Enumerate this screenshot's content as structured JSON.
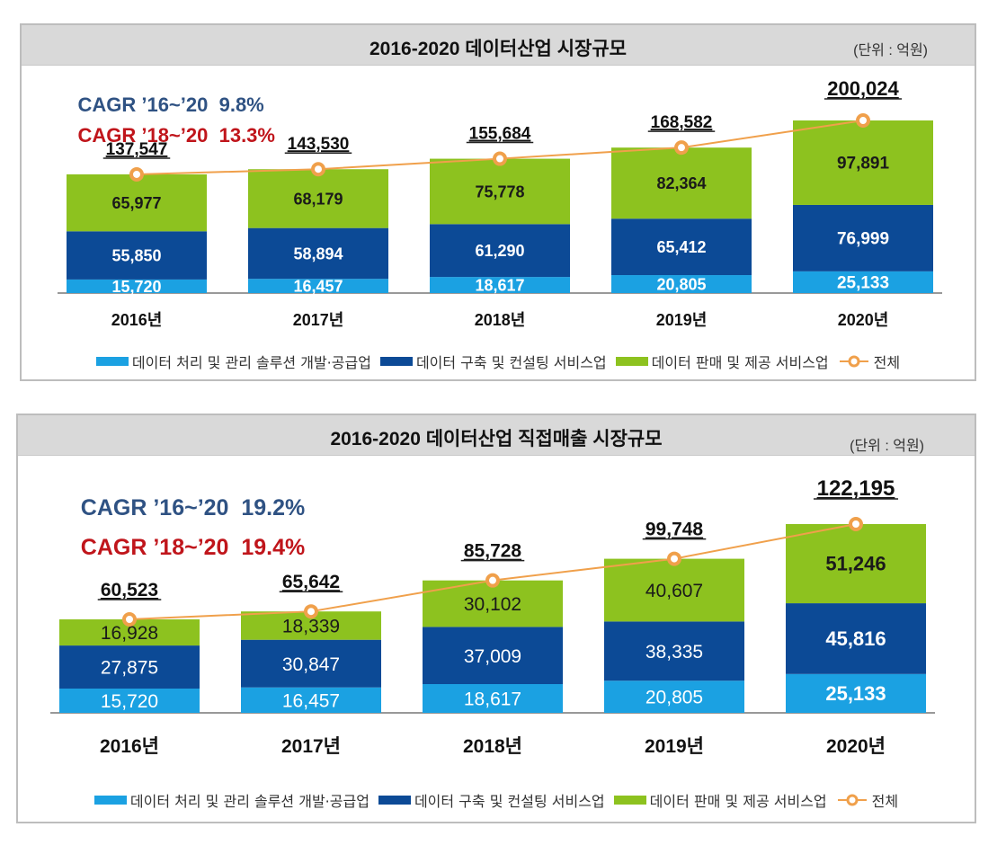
{
  "colors": {
    "series1": "#1ba1e2",
    "series2": "#0c4a96",
    "series3": "#8dc21f",
    "total_line": "#f0a04b",
    "cagr_long": "#2f5283",
    "cagr_short": "#c0151b"
  },
  "chart_data": [
    {
      "type": "bar",
      "stacked": true,
      "title": "2016-2020 데이터산업 시장규모",
      "unit_label": "(단위 : 억원)",
      "cagr": [
        {
          "label": "CAGR ’16~’20",
          "value": "9.8%"
        },
        {
          "label": "CAGR ’18~’20",
          "value": "13.3%"
        }
      ],
      "categories": [
        "2016년",
        "2017년",
        "2018년",
        "2019년",
        "2020년"
      ],
      "series": [
        {
          "name": "데이터 처리 및 관리 솔루션 개발·공급업",
          "values": [
            15720,
            16457,
            18617,
            20805,
            25133
          ],
          "labels": [
            "15,720",
            "16,457",
            "18,617",
            "20,805",
            "25,133"
          ]
        },
        {
          "name": "데이터 구축 및 컨설팅 서비스업",
          "values": [
            55850,
            58894,
            61290,
            65412,
            76999
          ],
          "labels": [
            "55,850",
            "58,894",
            "61,290",
            "65,412",
            "76,999"
          ]
        },
        {
          "name": "데이터 판매 및 제공 서비스업",
          "values": [
            65977,
            68179,
            75778,
            82364,
            97891
          ],
          "labels": [
            "65,977",
            "68,179",
            "75,778",
            "82,364",
            "97,891"
          ]
        }
      ],
      "total": {
        "name": "전체",
        "type": "line",
        "values": [
          137547,
          143530,
          155684,
          168582,
          200024
        ],
        "labels": [
          "137,547",
          "143,530",
          "155,684",
          "168,582",
          "200,024"
        ]
      },
      "xlabel": "",
      "ylabel": "",
      "ylim": [
        0,
        200024
      ],
      "grid": false,
      "legend": "bottom"
    },
    {
      "type": "bar",
      "stacked": true,
      "title": "2016-2020 데이터산업 직접매출 시장규모",
      "unit_label": "(단위 : 억원)",
      "cagr": [
        {
          "label": "CAGR ’16~’20",
          "value": "19.2%"
        },
        {
          "label": "CAGR ’18~’20",
          "value": "19.4%"
        }
      ],
      "categories": [
        "2016년",
        "2017년",
        "2018년",
        "2019년",
        "2020년"
      ],
      "series": [
        {
          "name": "데이터 처리 및 관리 솔루션 개발·공급업",
          "values": [
            15720,
            16457,
            18617,
            20805,
            25133
          ],
          "labels": [
            "15,720",
            "16,457",
            "18,617",
            "20,805",
            "25,133"
          ]
        },
        {
          "name": "데이터 구축 및 컨설팅 서비스업",
          "values": [
            27875,
            30847,
            37009,
            38335,
            45816
          ],
          "labels": [
            "27,875",
            "30,847",
            "37,009",
            "38,335",
            "45,816"
          ]
        },
        {
          "name": "데이터 판매 및 제공 서비스업",
          "values": [
            16928,
            18339,
            30102,
            40607,
            51246
          ],
          "labels": [
            "16,928",
            "18,339",
            "30,102",
            "40,607",
            "51,246"
          ]
        }
      ],
      "total": {
        "name": "전체",
        "type": "line",
        "values": [
          60523,
          65642,
          85728,
          99748,
          122195
        ],
        "labels": [
          "60,523",
          "65,642",
          "85,728",
          "99,748",
          "122,195"
        ]
      },
      "xlabel": "",
      "ylabel": "",
      "ylim": [
        0,
        122195
      ],
      "grid": false,
      "legend": "bottom"
    }
  ]
}
